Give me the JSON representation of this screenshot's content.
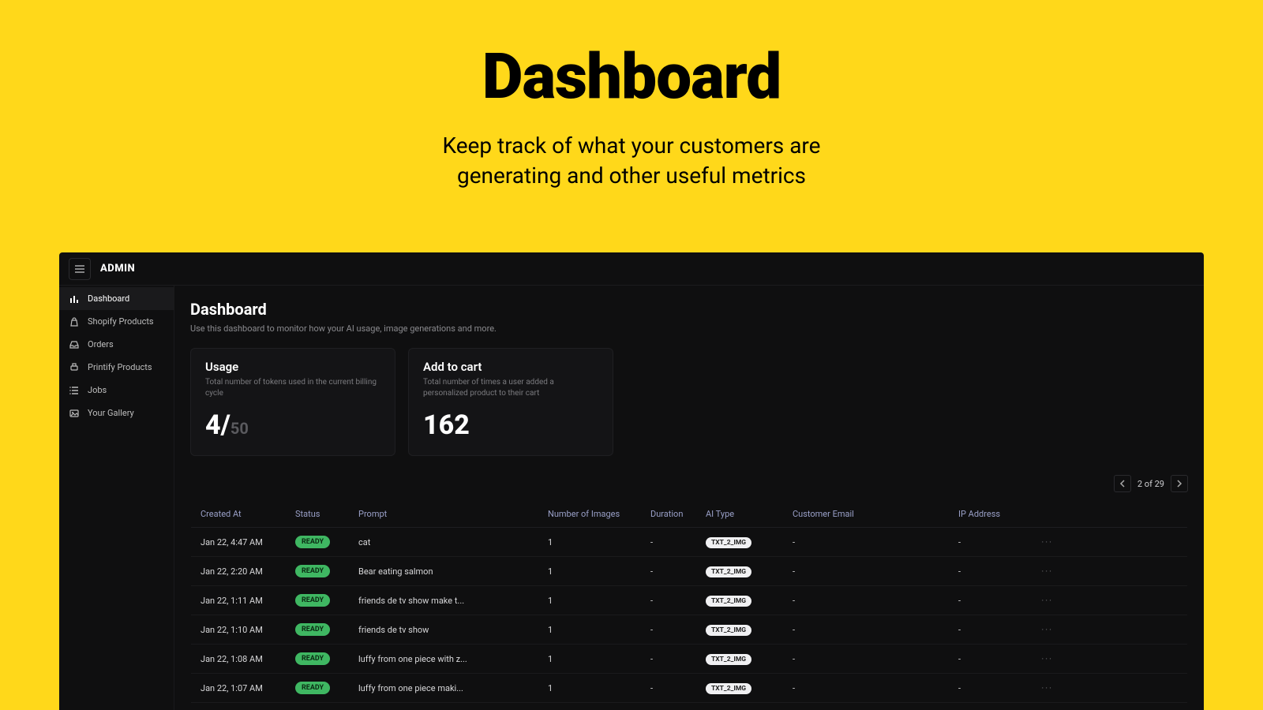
{
  "hero": {
    "title": "Dashboard",
    "subtitle_l1": "Keep track of what your customers are",
    "subtitle_l2": "generating and other useful metrics"
  },
  "topbar": {
    "brand": "ADMIN"
  },
  "sidebar": {
    "items": [
      {
        "label": "Dashboard",
        "icon": "bars",
        "active": true
      },
      {
        "label": "Shopify Products",
        "icon": "bag",
        "active": false
      },
      {
        "label": "Orders",
        "icon": "inbox",
        "active": false
      },
      {
        "label": "Printify Products",
        "icon": "printer",
        "active": false
      },
      {
        "label": "Jobs",
        "icon": "list",
        "active": false
      },
      {
        "label": "Your Gallery",
        "icon": "image",
        "active": false
      }
    ]
  },
  "page": {
    "title": "Dashboard",
    "subtitle": "Use this dashboard to monitor how your AI usage, image generations and more."
  },
  "cards": {
    "usage": {
      "title": "Usage",
      "desc": "Total number of tokens used in the current billing cycle",
      "value": "4/",
      "limit": "50"
    },
    "cart": {
      "title": "Add to cart",
      "desc": "Total number of times a user added a personalized product to their cart",
      "value": "162"
    }
  },
  "pager": {
    "label": "2 of 29"
  },
  "table": {
    "columns": [
      "Created At",
      "Status",
      "Prompt",
      "Number of Images",
      "Duration",
      "AI Type",
      "Customer Email",
      "IP Address",
      ""
    ],
    "status_label": "READY",
    "type_label": "TXT_2_IMG",
    "rows": [
      {
        "created": "Jan 22, 4:47 AM",
        "prompt": "cat",
        "num": "1",
        "dur": "-",
        "email": "-",
        "ip": "-"
      },
      {
        "created": "Jan 22, 2:20 AM",
        "prompt": "Bear eating salmon",
        "num": "1",
        "dur": "-",
        "email": "-",
        "ip": "-"
      },
      {
        "created": "Jan 22, 1:11 AM",
        "prompt": "friends de tv show make t...",
        "num": "1",
        "dur": "-",
        "email": "-",
        "ip": "-"
      },
      {
        "created": "Jan 22, 1:10 AM",
        "prompt": "friends de tv show",
        "num": "1",
        "dur": "-",
        "email": "-",
        "ip": "-"
      },
      {
        "created": "Jan 22, 1:08 AM",
        "prompt": "luffy from one piece with z...",
        "num": "1",
        "dur": "-",
        "email": "-",
        "ip": "-"
      },
      {
        "created": "Jan 22, 1:07 AM",
        "prompt": "luffy from one piece maki...",
        "num": "1",
        "dur": "-",
        "email": "-",
        "ip": "-"
      }
    ]
  },
  "colors": {
    "page_bg": "#ffd81a",
    "app_bg": "#0f0f10",
    "card_bg": "#141416",
    "ready_badge": "#3fb762",
    "type_badge": "#f0f0f2"
  }
}
